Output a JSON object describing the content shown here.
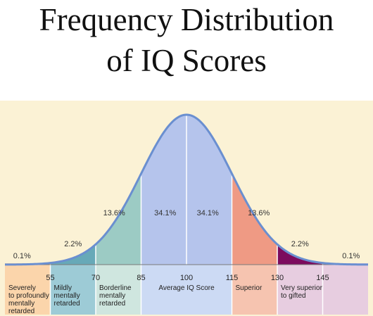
{
  "title_line1": "Frequency Distribution",
  "title_line2": "of  IQ Scores",
  "chart_data": {
    "type": "area",
    "title": "Frequency Distribution of IQ Scores",
    "xlim": [
      40,
      160
    ],
    "mean": 100,
    "sd": 15,
    "ticks": [
      55,
      70,
      85,
      100,
      115,
      130,
      145
    ],
    "bands": [
      {
        "from": 40,
        "to": 55,
        "percent": "0.1%",
        "color": "#f0932b",
        "label_color": "#fbd5ab",
        "category": [
          "Severely",
          "to profoundly",
          "mentally",
          "retarded"
        ]
      },
      {
        "from": 55,
        "to": 70,
        "percent": "2.2%",
        "color": "#67a9b8",
        "label_color": "#9dcbd6",
        "category": [
          "Mildly",
          "mentally",
          "retarded"
        ]
      },
      {
        "from": 70,
        "to": 85,
        "percent": "13.6%",
        "color": "#9ccbc4",
        "label_color": "#cfe6df",
        "category": [
          "Borderline",
          "mentally",
          "retarded"
        ]
      },
      {
        "from": 85,
        "to": 100,
        "percent": "34.1%",
        "color": "#b5c4ec",
        "label_color": "#ccdaf4",
        "category": [
          "Average IQ Score"
        ]
      },
      {
        "from": 100,
        "to": 115,
        "percent": "34.1%",
        "color": "#b5c4ec",
        "label_color": "#ccdaf4",
        "category": []
      },
      {
        "from": 115,
        "to": 130,
        "percent": "13.6%",
        "color": "#ef9a84",
        "label_color": "#f6c4b0",
        "category": [
          "Superior"
        ]
      },
      {
        "from": 130,
        "to": 145,
        "percent": "2.2%",
        "color": "#7c0b5e",
        "label_color": "#e7cde0",
        "category": [
          "Very superior",
          "to gifted"
        ]
      },
      {
        "from": 145,
        "to": 160,
        "percent": "0.1%",
        "color": "#b46e9c",
        "label_color": "#e7cde0",
        "category": []
      }
    ],
    "colors": {
      "background": "#fbf2d5",
      "curve": "#6a8fd0",
      "divider": "#ffffff"
    }
  }
}
